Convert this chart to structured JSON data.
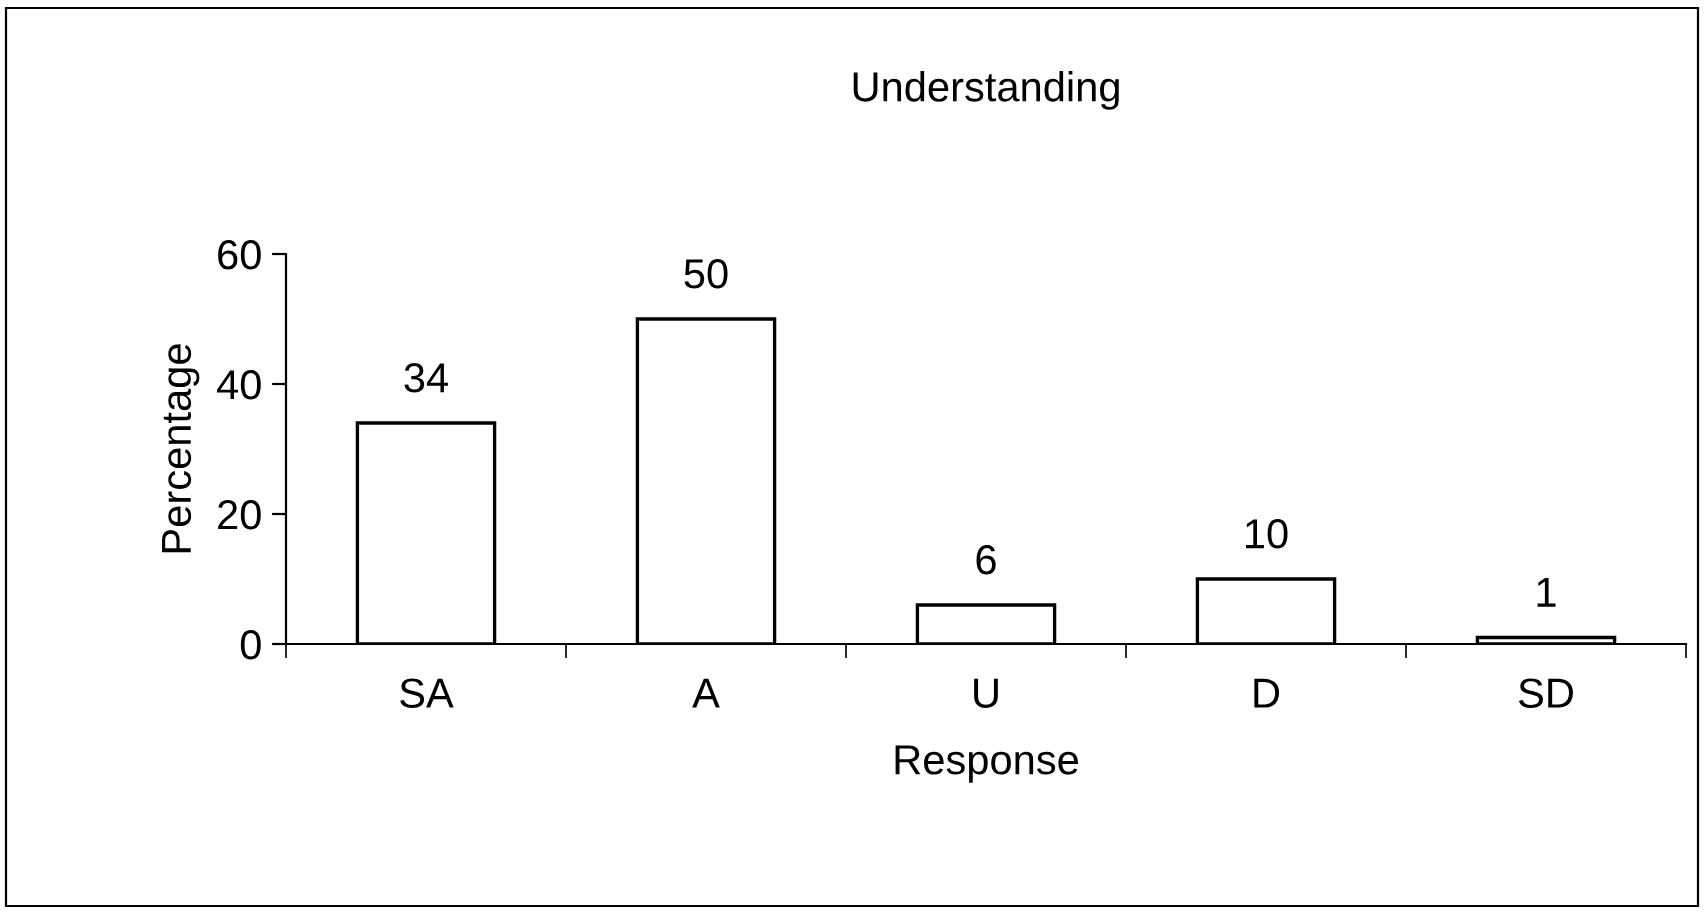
{
  "chart_data": {
    "type": "bar",
    "title": "Understanding",
    "xlabel": "Response",
    "ylabel": "Percentage",
    "categories": [
      "SA",
      "A",
      "U",
      "D",
      "SD"
    ],
    "values": [
      34,
      50,
      6,
      10,
      1
    ],
    "color": "#ffffff",
    "ylim": [
      0,
      60
    ],
    "yticks": [
      0,
      20,
      40,
      60
    ],
    "grid": false,
    "data_labels": true
  }
}
